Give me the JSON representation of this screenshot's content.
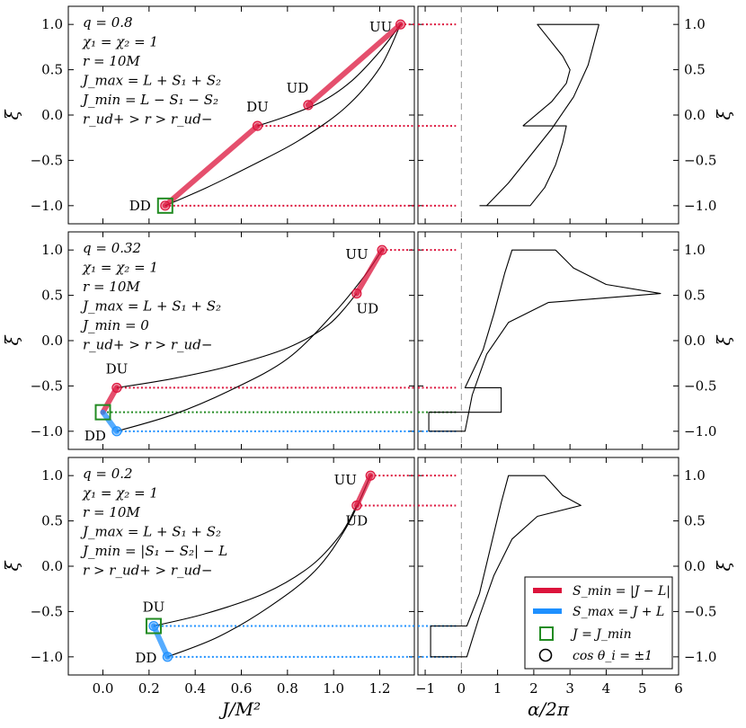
{
  "chart_data": {
    "type": "line",
    "title": "",
    "xlabel_left": "J/M²",
    "xlabel_right": "α/2π",
    "ylabel": "ξ",
    "left_xlim": [
      -0.15,
      1.35
    ],
    "right_xlim": [
      -1.2,
      6
    ],
    "ylim": [
      -1.2,
      1.2
    ],
    "left_xticks": [
      "0.0",
      "0.2",
      "0.4",
      "0.6",
      "0.8",
      "1.0",
      "1.2"
    ],
    "right_xticks": [
      "−1",
      "0",
      "1",
      "2",
      "3",
      "4",
      "5",
      "6"
    ],
    "yticks": [
      "−1.0",
      "−0.5",
      "0.0",
      "0.5",
      "1.0"
    ],
    "colors": {
      "smin": "#dc143c",
      "smax": "#1e90ff",
      "jmin": "#228b22",
      "curve": "#000000",
      "dashed": "#999999"
    },
    "legend": {
      "position": "lower-right of bottom-right panel",
      "items": [
        {
          "label": "S_min = |J − L|",
          "color": "#dc143c"
        },
        {
          "label": "S_max = J + L",
          "color": "#1e90ff"
        },
        {
          "label": "J = J_min",
          "color": "#228b22"
        },
        {
          "label": "cos θ_i = ±1",
          "color": "#000000"
        }
      ]
    },
    "panels": [
      {
        "annotations": [
          "q = 0.8",
          "χ₁ = χ₂ = 1",
          "r = 10M",
          "J_max = L + S₁ + S₂",
          "J_min = L − S₁ − S₂",
          "r_ud+ > r > r_ud−"
        ],
        "points": [
          {
            "name": "UU",
            "J": 1.29,
            "xi": 1.0,
            "color": "#dc143c"
          },
          {
            "name": "UD",
            "J": 0.89,
            "xi": 0.11,
            "color": "#dc143c"
          },
          {
            "name": "DU",
            "J": 0.67,
            "xi": -0.12,
            "color": "#dc143c"
          },
          {
            "name": "DD",
            "J": 0.27,
            "xi": -1.0,
            "color": "#dc143c"
          }
        ],
        "jmin_marker": {
          "J": 0.27,
          "xi": -1.0
        },
        "red_segments": [
          [
            [
              0.27,
              -1.0
            ],
            [
              0.67,
              -0.12
            ]
          ],
          [
            [
              0.89,
              0.11
            ],
            [
              1.29,
              1.0
            ]
          ]
        ],
        "blue_segments": [],
        "upper_curve": [
          [
            0.67,
            -0.12
          ],
          [
            0.8,
            -0.01
          ],
          [
            0.95,
            0.15
          ],
          [
            1.08,
            0.38
          ],
          [
            1.2,
            0.7
          ],
          [
            1.29,
            1.0
          ]
        ],
        "lower_curve": [
          [
            0.27,
            -1.0
          ],
          [
            0.45,
            -0.8
          ],
          [
            0.65,
            -0.55
          ],
          [
            0.85,
            -0.28
          ],
          [
            1.05,
            0.08
          ],
          [
            1.2,
            0.52
          ],
          [
            1.29,
            1.0
          ]
        ],
        "hlines": [
          {
            "xi": 1.0,
            "color": "#dc143c"
          },
          {
            "xi": -0.12,
            "color": "#dc143c"
          },
          {
            "xi": -1.0,
            "color": "#dc143c"
          }
        ],
        "alpha_curves": [
          [
            [
              3.8,
              1.0
            ],
            [
              2.1,
              1.0
            ],
            [
              2.4,
              0.85
            ],
            [
              2.8,
              0.65
            ],
            [
              3.0,
              0.5
            ],
            [
              2.9,
              0.35
            ],
            [
              2.5,
              0.15
            ],
            [
              1.7,
              -0.12
            ]
          ],
          [
            [
              1.7,
              -0.12
            ],
            [
              2.9,
              -0.12
            ],
            [
              2.8,
              -0.3
            ],
            [
              2.6,
              -0.55
            ],
            [
              2.3,
              -0.8
            ],
            [
              1.9,
              -1.0
            ],
            [
              0.5,
              -1.0
            ]
          ],
          [
            [
              0.7,
              -1.0
            ],
            [
              1.3,
              -0.75
            ],
            [
              1.9,
              -0.45
            ],
            [
              2.5,
              -0.15
            ],
            [
              3.1,
              0.2
            ],
            [
              3.5,
              0.55
            ],
            [
              3.8,
              1.0
            ]
          ]
        ]
      },
      {
        "annotations": [
          "q = 0.32",
          "χ₁ = χ₂ = 1",
          "r = 10M",
          "J_max = L + S₁ + S₂",
          "J_min = 0",
          "r_ud+ > r > r_ud−"
        ],
        "points": [
          {
            "name": "UU",
            "J": 1.21,
            "xi": 1.0,
            "color": "#dc143c"
          },
          {
            "name": "UD",
            "J": 1.1,
            "xi": 0.52,
            "color": "#dc143c"
          },
          {
            "name": "DU",
            "J": 0.06,
            "xi": -0.52,
            "color": "#dc143c"
          },
          {
            "name": "DD",
            "J": 0.06,
            "xi": -1.0,
            "color": "#1e90ff"
          }
        ],
        "jmin_marker": {
          "J": 0.0,
          "xi": -0.79
        },
        "red_segments": [
          [
            [
              0.0,
              -0.79
            ],
            [
              0.06,
              -0.52
            ]
          ],
          [
            [
              1.1,
              0.52
            ],
            [
              1.21,
              1.0
            ]
          ]
        ],
        "blue_segments": [
          [
            [
              0.0,
              -0.79
            ],
            [
              0.06,
              -1.0
            ]
          ]
        ],
        "upper_curve": [
          [
            0.06,
            -0.52
          ],
          [
            0.3,
            -0.42
          ],
          [
            0.55,
            -0.28
          ],
          [
            0.8,
            -0.08
          ],
          [
            0.98,
            0.18
          ],
          [
            1.1,
            0.52
          ]
        ],
        "lower_curve": [
          [
            0.06,
            -1.0
          ],
          [
            0.3,
            -0.82
          ],
          [
            0.55,
            -0.55
          ],
          [
            0.8,
            -0.2
          ],
          [
            1.0,
            0.3
          ],
          [
            1.13,
            0.7
          ],
          [
            1.21,
            1.0
          ]
        ],
        "hlines": [
          {
            "xi": 1.0,
            "color": "#dc143c"
          },
          {
            "xi": -0.52,
            "color": "#dc143c"
          },
          {
            "xi": -0.79,
            "color": "#228b22"
          },
          {
            "xi": -1.0,
            "color": "#1e90ff"
          }
        ],
        "alpha_curves": [
          [
            [
              2.6,
              1.0
            ],
            [
              1.4,
              1.0
            ],
            [
              1.2,
              0.75
            ],
            [
              0.9,
              0.3
            ],
            [
              0.6,
              -0.1
            ],
            [
              0.1,
              -0.52
            ],
            [
              1.1,
              -0.52
            ],
            [
              1.1,
              -0.79
            ],
            [
              -0.9,
              -0.79
            ],
            [
              -0.9,
              -1.0
            ],
            [
              0.1,
              -1.0
            ],
            [
              0.3,
              -0.6
            ],
            [
              0.7,
              -0.15
            ],
            [
              1.3,
              0.2
            ],
            [
              2.4,
              0.42
            ],
            [
              5.5,
              0.52
            ],
            [
              4.0,
              0.62
            ],
            [
              3.1,
              0.8
            ],
            [
              2.6,
              1.0
            ]
          ]
        ]
      },
      {
        "annotations": [
          "q = 0.2",
          "χ₁ = χ₂ = 1",
          "r = 10M",
          "J_max = L + S₁ + S₂",
          "J_min = |S₁ − S₂| − L",
          "r > r_ud+ > r_ud−"
        ],
        "points": [
          {
            "name": "UU",
            "J": 1.16,
            "xi": 1.0,
            "color": "#dc143c"
          },
          {
            "name": "UD",
            "J": 1.1,
            "xi": 0.67,
            "color": "#dc143c"
          },
          {
            "name": "DU",
            "J": 0.22,
            "xi": -0.66,
            "color": "#1e90ff"
          },
          {
            "name": "DD",
            "J": 0.28,
            "xi": -1.0,
            "color": "#1e90ff"
          }
        ],
        "jmin_marker": {
          "J": 0.22,
          "xi": -0.66
        },
        "red_segments": [
          [
            [
              1.1,
              0.67
            ],
            [
              1.16,
              1.0
            ]
          ]
        ],
        "blue_segments": [
          [
            [
              0.22,
              -0.66
            ],
            [
              0.28,
              -1.0
            ]
          ]
        ],
        "upper_curve": [
          [
            0.22,
            -0.66
          ],
          [
            0.45,
            -0.52
          ],
          [
            0.7,
            -0.3
          ],
          [
            0.9,
            0.0
          ],
          [
            1.03,
            0.35
          ],
          [
            1.1,
            0.67
          ]
        ],
        "lower_curve": [
          [
            0.28,
            -1.0
          ],
          [
            0.5,
            -0.78
          ],
          [
            0.72,
            -0.45
          ],
          [
            0.92,
            -0.05
          ],
          [
            1.06,
            0.45
          ],
          [
            1.16,
            1.0
          ]
        ],
        "hlines": [
          {
            "xi": 1.0,
            "color": "#dc143c"
          },
          {
            "xi": 0.67,
            "color": "#dc143c"
          },
          {
            "xi": -0.66,
            "color": "#1e90ff"
          },
          {
            "xi": -1.0,
            "color": "#1e90ff"
          }
        ],
        "alpha_curves": [
          [
            [
              2.3,
              1.0
            ],
            [
              1.3,
              1.0
            ],
            [
              1.1,
              0.7
            ],
            [
              0.8,
              0.2
            ],
            [
              0.5,
              -0.3
            ],
            [
              0.15,
              -0.66
            ],
            [
              -0.85,
              -0.66
            ],
            [
              -0.85,
              -1.0
            ],
            [
              0.15,
              -1.0
            ],
            [
              0.5,
              -0.55
            ],
            [
              0.9,
              -0.1
            ],
            [
              1.4,
              0.3
            ],
            [
              2.1,
              0.55
            ],
            [
              3.3,
              0.67
            ],
            [
              2.8,
              0.78
            ],
            [
              2.3,
              1.0
            ]
          ]
        ]
      }
    ]
  }
}
